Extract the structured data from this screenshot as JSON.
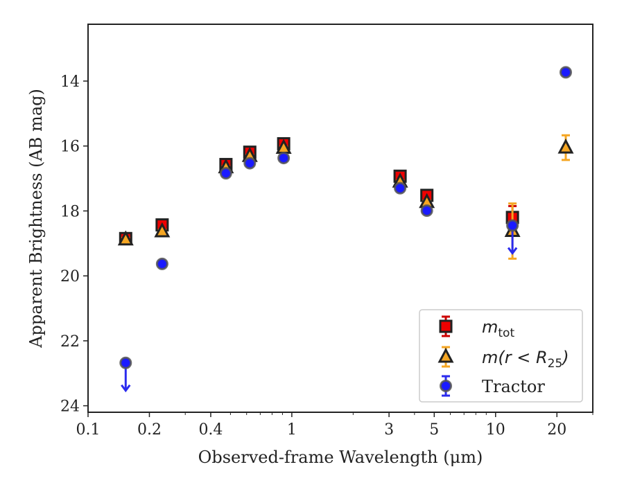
{
  "chart_data": {
    "type": "scatter",
    "xlabel": "Observed-frame Wavelength (μm)",
    "ylabel": "Apparent Brightness (AB mag)",
    "xscale": "log",
    "xlim": [
      0.1,
      30
    ],
    "ylim": [
      24.2,
      12.25
    ],
    "y_inverted": true,
    "grid": false,
    "legend_position": "lower-right",
    "x_ticks": [
      0.1,
      0.2,
      0.4,
      1,
      3,
      5,
      10,
      20
    ],
    "x_tick_labels": [
      "0.1",
      "0.2",
      "0.4",
      "1",
      "3",
      "5",
      "10",
      "20"
    ],
    "y_ticks": [
      14,
      16,
      18,
      20,
      22,
      24
    ],
    "y_tick_labels": [
      "14",
      "16",
      "18",
      "20",
      "22",
      "24"
    ],
    "series": [
      {
        "name": "m_tot",
        "legend_main": "m",
        "legend_sub": "tot",
        "marker": "square",
        "color": "#ee0000",
        "edge_color": "#222222",
        "errorbar_color": "#cc0000",
        "points": [
          {
            "x": 0.153,
            "y": 18.85,
            "err": 0.05
          },
          {
            "x": 0.231,
            "y": 18.43,
            "err": 0.05
          },
          {
            "x": 0.475,
            "y": 16.57,
            "err": 0.04
          },
          {
            "x": 0.622,
            "y": 16.19,
            "err": 0.04
          },
          {
            "x": 0.912,
            "y": 15.93,
            "err": 0.04
          },
          {
            "x": 3.4,
            "y": 16.93,
            "err": 0.04
          },
          {
            "x": 4.6,
            "y": 17.52,
            "err": 0.05
          },
          {
            "x": 12.1,
            "y": 18.2,
            "err": 0.35
          }
        ]
      },
      {
        "name": "m(r < R25)",
        "legend_main": "m(r < R",
        "legend_sub": "25",
        "legend_close": ")",
        "marker": "triangle",
        "color": "#f5a623",
        "edge_color": "#222222",
        "errorbar_color": "#f5a623",
        "points": [
          {
            "x": 0.153,
            "y": 18.88,
            "err": 0.05
          },
          {
            "x": 0.231,
            "y": 18.63,
            "err": 0.05
          },
          {
            "x": 0.475,
            "y": 16.66,
            "err": 0.04
          },
          {
            "x": 0.622,
            "y": 16.31,
            "err": 0.04
          },
          {
            "x": 0.912,
            "y": 16.06,
            "err": 0.04
          },
          {
            "x": 3.4,
            "y": 17.1,
            "err": 0.04
          },
          {
            "x": 4.6,
            "y": 17.73,
            "err": 0.05
          },
          {
            "x": 12.1,
            "y": 18.62,
            "err": 0.85
          },
          {
            "x": 22.1,
            "y": 16.05,
            "err": 0.38
          }
        ]
      },
      {
        "name": "Tractor",
        "legend_main": "Tractor",
        "marker": "circle",
        "color": "#1a1aff",
        "edge_color": "#555555",
        "errorbar_color": "#2b2bee",
        "points": [
          {
            "x": 0.153,
            "y": 22.68,
            "upper_limit": true
          },
          {
            "x": 0.231,
            "y": 19.63
          },
          {
            "x": 0.475,
            "y": 16.84
          },
          {
            "x": 0.622,
            "y": 16.53
          },
          {
            "x": 0.912,
            "y": 16.37
          },
          {
            "x": 3.4,
            "y": 17.3
          },
          {
            "x": 4.6,
            "y": 17.99
          },
          {
            "x": 12.1,
            "y": 18.45,
            "upper_limit": true
          },
          {
            "x": 22.1,
            "y": 13.73
          }
        ]
      }
    ]
  }
}
